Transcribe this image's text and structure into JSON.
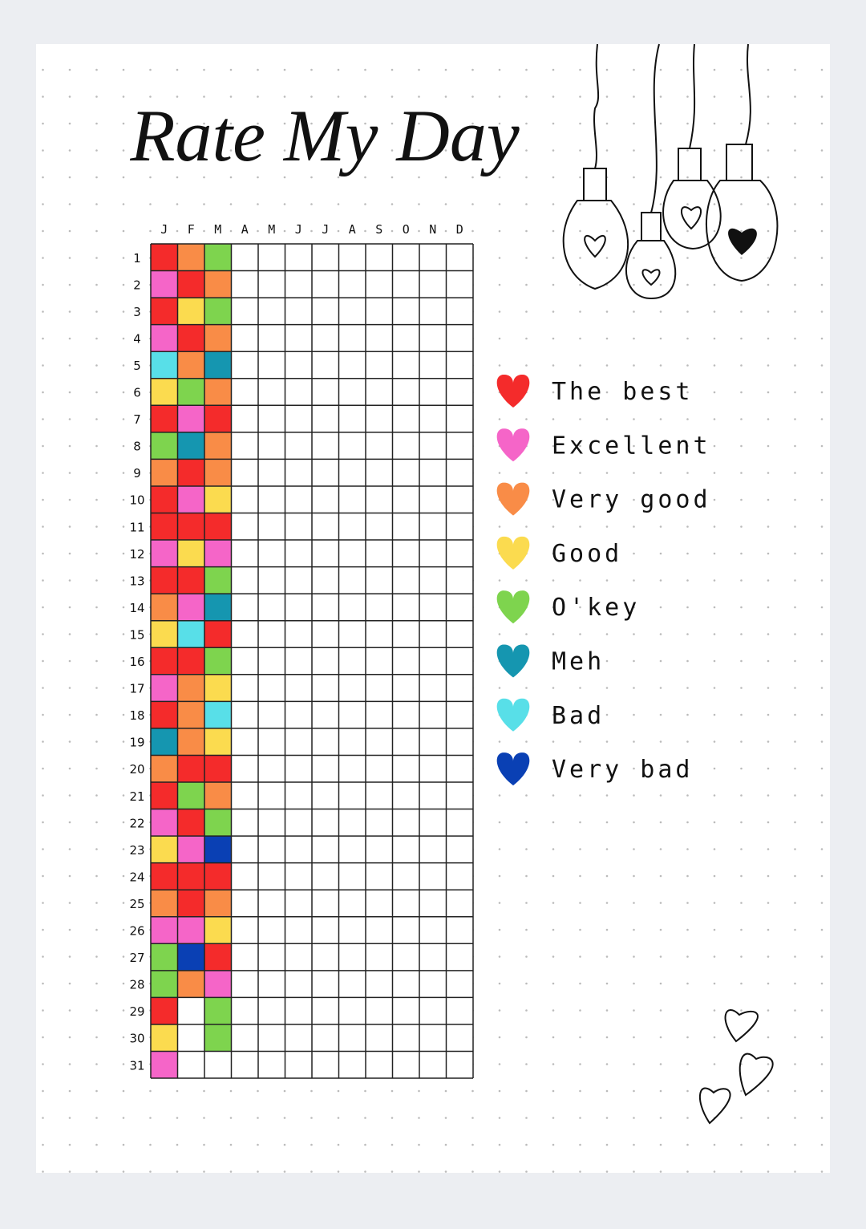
{
  "title": "Rate My Day",
  "months": [
    "J",
    "F",
    "M",
    "A",
    "M",
    "J",
    "J",
    "A",
    "S",
    "O",
    "N",
    "D"
  ],
  "days": [
    1,
    2,
    3,
    4,
    5,
    6,
    7,
    8,
    9,
    10,
    11,
    12,
    13,
    14,
    15,
    16,
    17,
    18,
    19,
    20,
    21,
    22,
    23,
    24,
    25,
    26,
    27,
    28,
    29,
    30,
    31
  ],
  "legend": [
    {
      "label": "The best",
      "color": "#f42b2b"
    },
    {
      "label": "Excellent",
      "color": "#f565c8"
    },
    {
      "label": "Very good",
      "color": "#f98c47"
    },
    {
      "label": "Good",
      "color": "#fbdb4f"
    },
    {
      "label": "O'key",
      "color": "#7ed44e"
    },
    {
      "label": "Meh",
      "color": "#1596b0"
    },
    {
      "label": "Bad",
      "color": "#58dfe8"
    },
    {
      "label": "Very bad",
      "color": "#0a40b4"
    }
  ],
  "ratings": [
    [
      0,
      2,
      4
    ],
    [
      1,
      0,
      2
    ],
    [
      0,
      3,
      4
    ],
    [
      1,
      0,
      2
    ],
    [
      6,
      2,
      5
    ],
    [
      3,
      4,
      2
    ],
    [
      0,
      1,
      0
    ],
    [
      4,
      5,
      2
    ],
    [
      2,
      0,
      2
    ],
    [
      0,
      1,
      3
    ],
    [
      0,
      0,
      0
    ],
    [
      1,
      3,
      1
    ],
    [
      0,
      0,
      4
    ],
    [
      2,
      1,
      5
    ],
    [
      3,
      6,
      0
    ],
    [
      0,
      0,
      4
    ],
    [
      1,
      2,
      3
    ],
    [
      0,
      2,
      6
    ],
    [
      5,
      2,
      3
    ],
    [
      2,
      0,
      0
    ],
    [
      0,
      4,
      2
    ],
    [
      1,
      0,
      4
    ],
    [
      3,
      1,
      7
    ],
    [
      0,
      0,
      0
    ],
    [
      2,
      0,
      2
    ],
    [
      1,
      1,
      3
    ],
    [
      4,
      7,
      0
    ],
    [
      4,
      2,
      1
    ],
    [
      0,
      null,
      4
    ],
    [
      3,
      null,
      4
    ],
    [
      1,
      null,
      null
    ]
  ]
}
